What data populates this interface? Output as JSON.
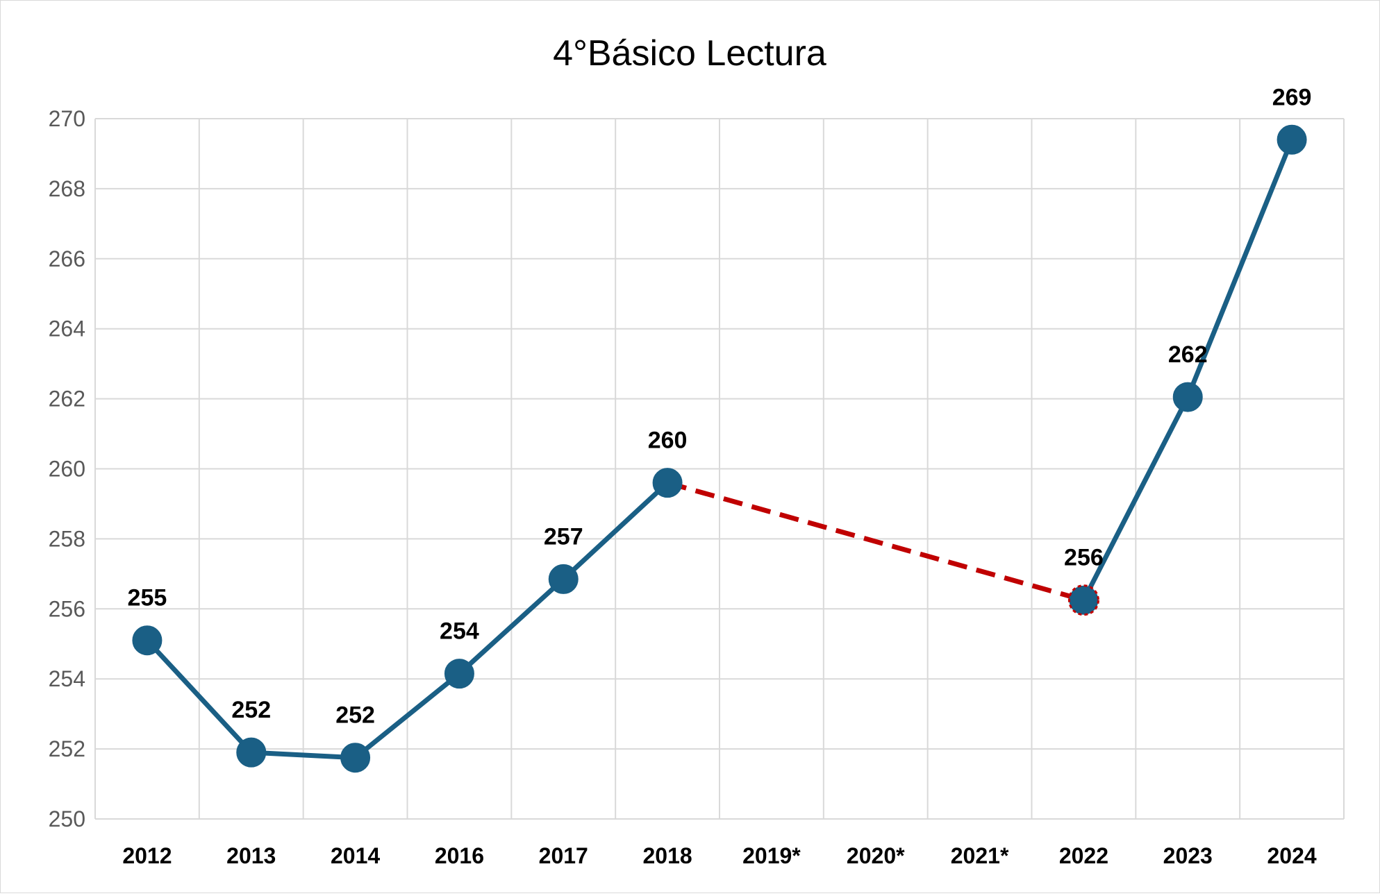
{
  "chart_data": {
    "type": "line",
    "title": "4°Básico Lectura",
    "xlabel": "",
    "ylabel": "",
    "categories": [
      "2012",
      "2013",
      "2014",
      "2016",
      "2017",
      "2018",
      "2019*",
      "2020*",
      "2021*",
      "2022",
      "2023",
      "2024"
    ],
    "series": [
      {
        "values": [
          255.1,
          251.9,
          251.75,
          254.15,
          256.85,
          259.6,
          null,
          null,
          null,
          256.25,
          262.05,
          269.4
        ],
        "data_labels": [
          "255",
          "252",
          "252",
          "254",
          "257",
          "260",
          "",
          "",
          "",
          "256",
          "262",
          "269"
        ],
        "color": "#1a5f85"
      }
    ],
    "gap_connector": {
      "from": "2018",
      "to": "2022",
      "style": "dashed",
      "color": "#c00000"
    },
    "ylim": [
      250,
      270
    ],
    "yticks": [
      "250",
      "252",
      "254",
      "256",
      "258",
      "260",
      "262",
      "264",
      "266",
      "268",
      "270"
    ],
    "grid": true,
    "legend": "none"
  }
}
